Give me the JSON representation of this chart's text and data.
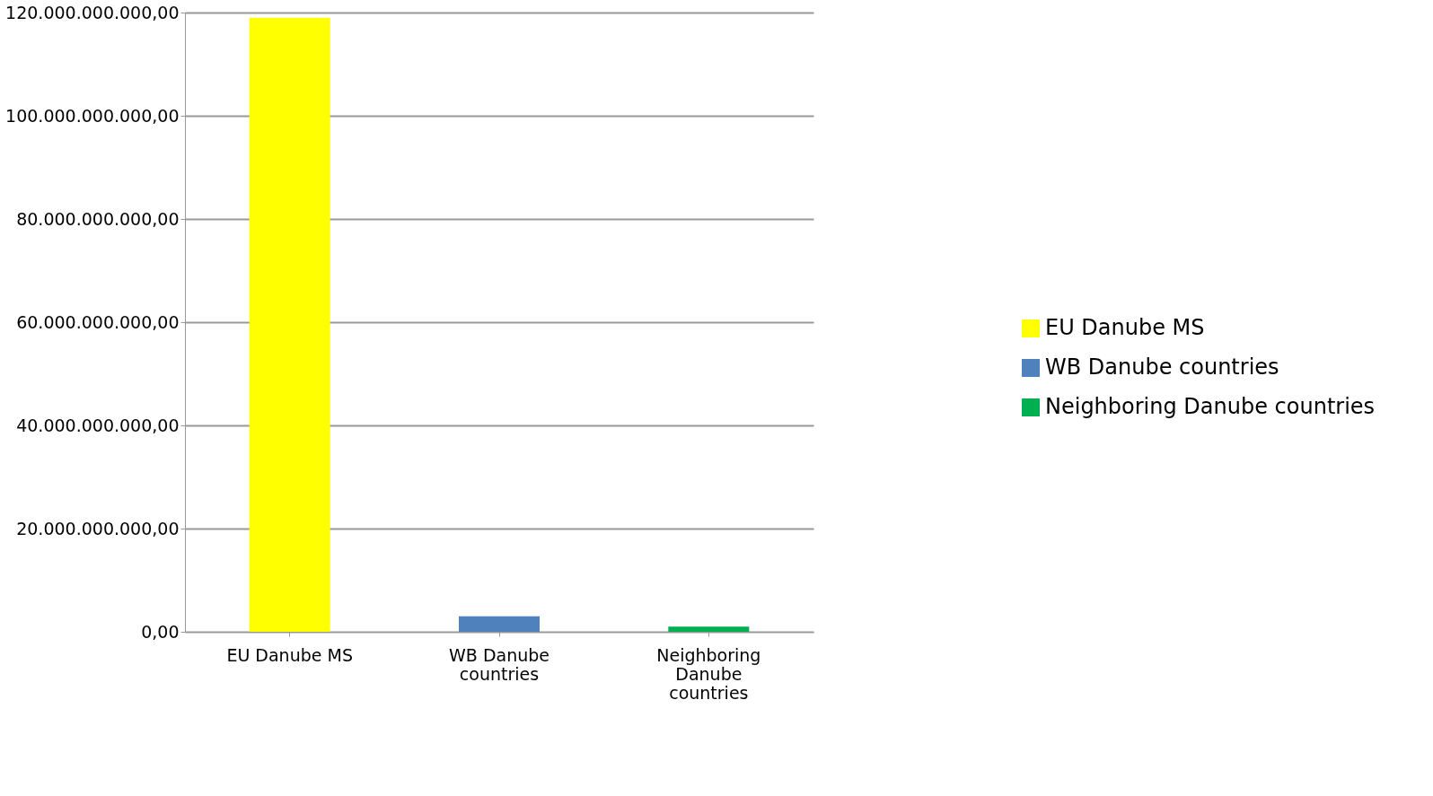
{
  "chart_data": {
    "type": "bar",
    "categories": [
      "EU Danube MS",
      "WB Danube countries",
      "Neighboring Danube countries"
    ],
    "series": [
      {
        "name": "EU Danube MS",
        "color": "#ffff00",
        "values": [
          119000000000,
          null,
          null
        ]
      },
      {
        "name": "WB Danube countries",
        "color": "#4f81bd",
        "values": [
          null,
          3000000000,
          null
        ]
      },
      {
        "name": "Neighboring Danube countries",
        "color": "#00b050",
        "values": [
          null,
          null,
          1000000000
        ]
      }
    ],
    "ylim": [
      0,
      120000000000
    ],
    "yticks": [
      {
        "value": 0,
        "label": "0,00"
      },
      {
        "value": 20000000000,
        "label": "20.000.000.000,00"
      },
      {
        "value": 40000000000,
        "label": "40.000.000.000,00"
      },
      {
        "value": 60000000000,
        "label": "60.000.000.000,00"
      },
      {
        "value": 80000000000,
        "label": "80.000.000.000,00"
      },
      {
        "value": 100000000000,
        "label": "100.000.000.000,00"
      },
      {
        "value": 120000000000,
        "label": "120.000.000.000,00"
      }
    ],
    "grid": "y",
    "legend": "right"
  }
}
